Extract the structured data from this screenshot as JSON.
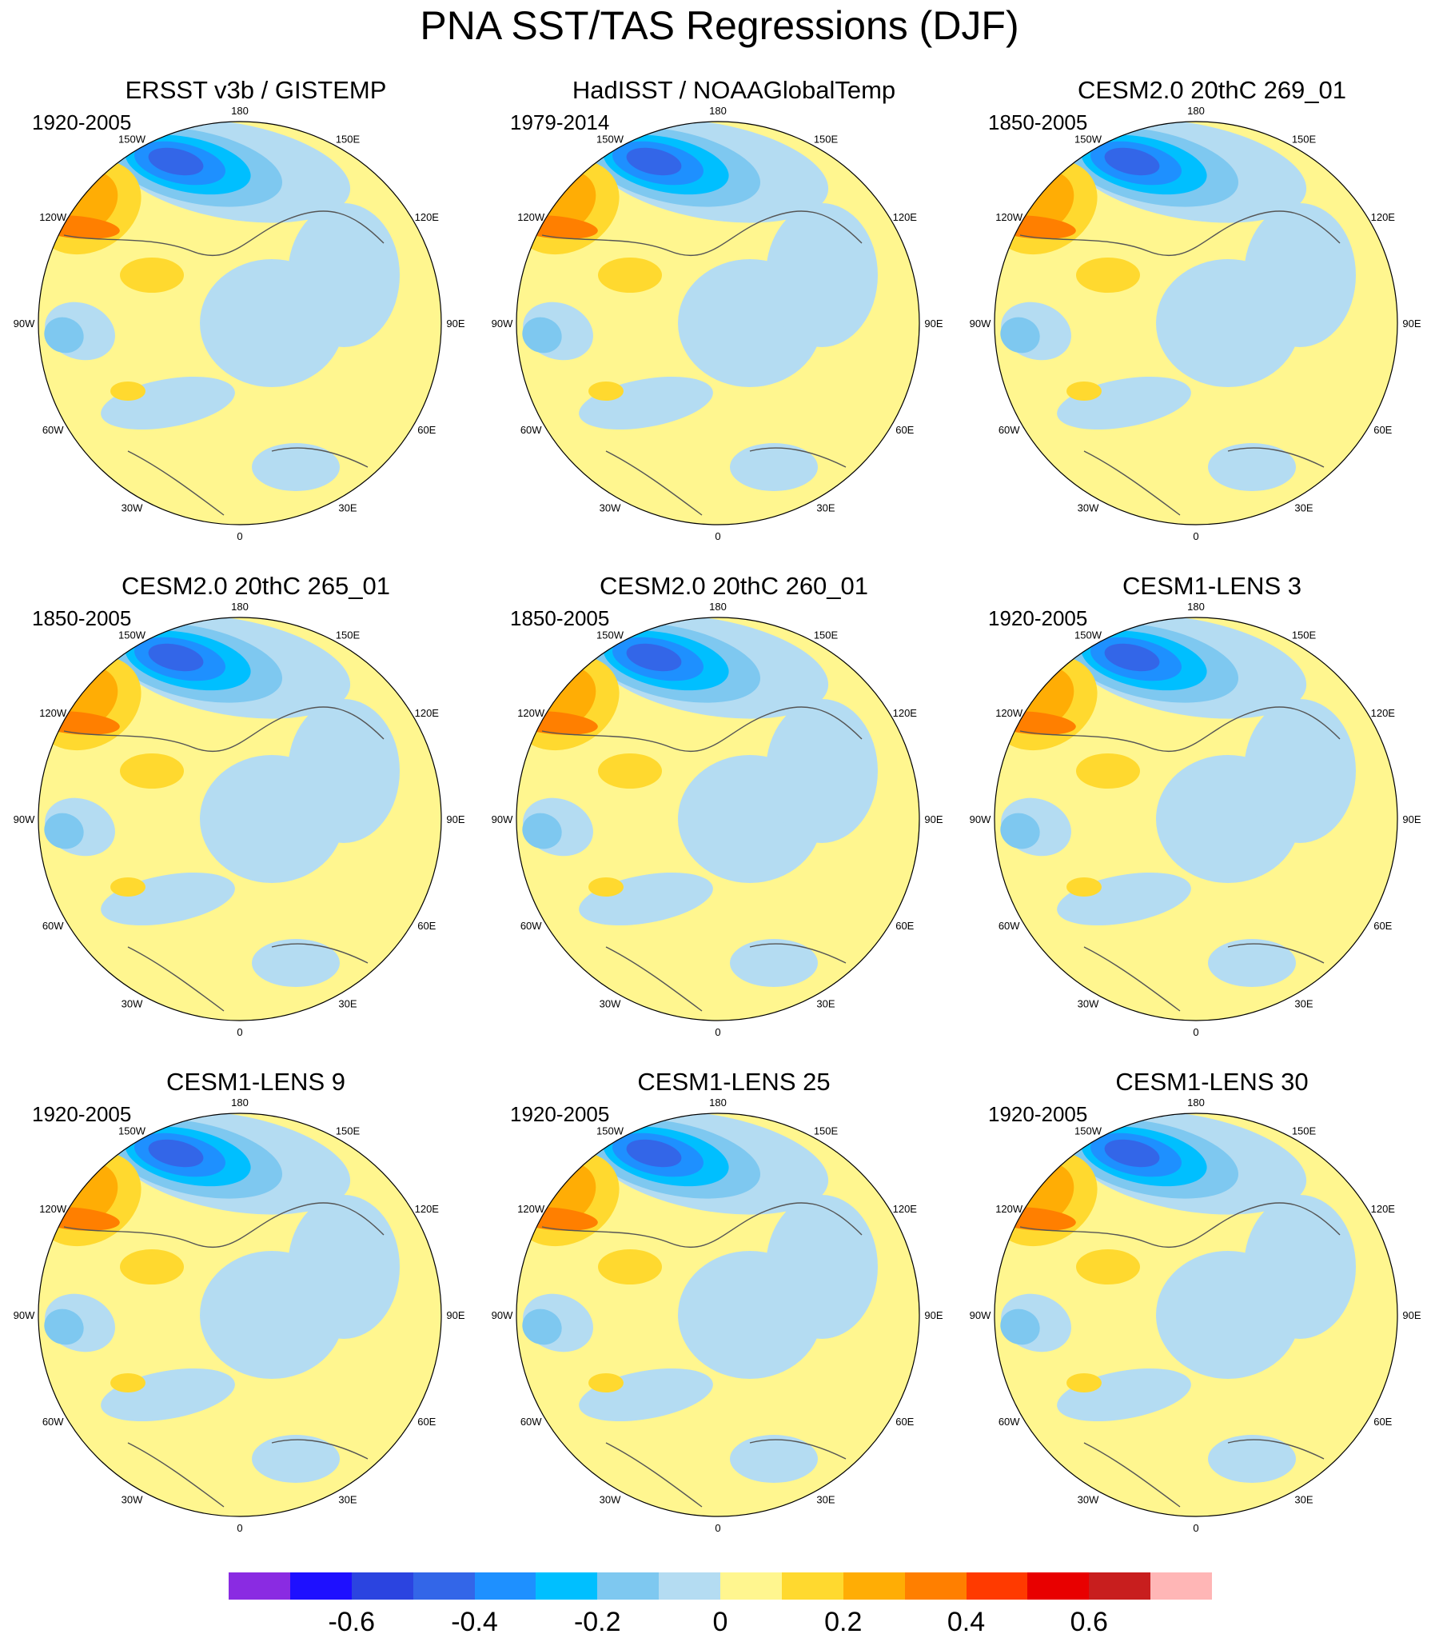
{
  "title": "PNA SST/TAS Regressions (DJF)",
  "panels": [
    {
      "title": "ERSST v3b / GISTEMP",
      "period": "1920-2005"
    },
    {
      "title": "HadISST / NOAAGlobalTemp",
      "period": "1979-2014"
    },
    {
      "title": "CESM2.0 20thC 269_01",
      "period": "1850-2005"
    },
    {
      "title": "CESM2.0 20thC 265_01",
      "period": "1850-2005"
    },
    {
      "title": "CESM2.0 20thC 260_01",
      "period": "1850-2005"
    },
    {
      "title": "CESM1-LENS 3",
      "period": "1920-2005"
    },
    {
      "title": "CESM1-LENS 9",
      "period": "1920-2005"
    },
    {
      "title": "CESM1-LENS 25",
      "period": "1920-2005"
    },
    {
      "title": "CESM1-LENS 30",
      "period": "1920-2005"
    }
  ],
  "longitude_labels": [
    "180",
    "150E",
    "120E",
    "90E",
    "60E",
    "30E",
    "0",
    "30W",
    "60W",
    "90W",
    "120W",
    "150W"
  ],
  "colorbar": {
    "colors": [
      "#8a2be2",
      "#1e10ff",
      "#2b44e0",
      "#3366e8",
      "#1e90ff",
      "#00bfff",
      "#7ec8f0",
      "#b4dcf2",
      "#fff68f",
      "#ffd92f",
      "#ffad05",
      "#ff7f00",
      "#ff3a00",
      "#e80000",
      "#c81e1e",
      "#ffb6b6"
    ],
    "tick_values": [
      -0.6,
      -0.4,
      -0.2,
      0,
      0.2,
      0.4,
      0.6
    ],
    "tick_labels": [
      "-0.6",
      "-0.4",
      "-0.2",
      "0",
      "0.2",
      "0.4",
      "0.6"
    ]
  }
}
